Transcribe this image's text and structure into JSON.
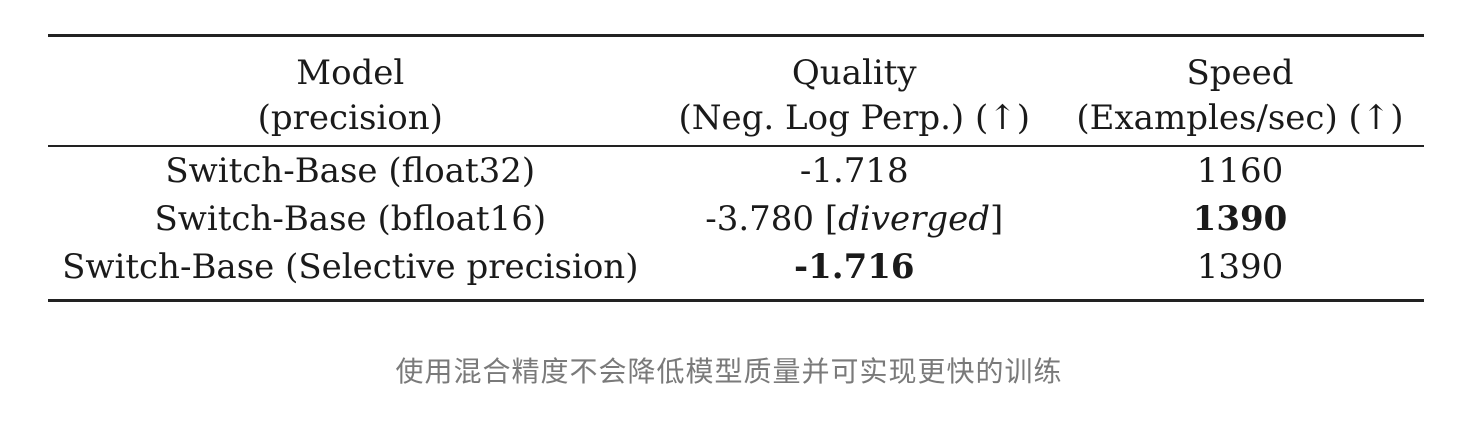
{
  "table": {
    "headers": [
      {
        "line1": "Model",
        "line2": "(precision)"
      },
      {
        "line1": "Quality",
        "line2": "(Neg. Log Perp.) (↑)"
      },
      {
        "line1": "Speed",
        "line2": "(Examples/sec) (↑)"
      }
    ],
    "rows": [
      {
        "model": "Switch-Base (float32)",
        "quality": "-1.718",
        "quality_note": "",
        "speed": "1160"
      },
      {
        "model": "Switch-Base (bfloat16)",
        "quality": "-3.780",
        "quality_note": "diverged",
        "speed": "1390"
      },
      {
        "model": "Switch-Base (Selective precision)",
        "quality": "-1.716",
        "quality_note": "",
        "speed": "1390"
      }
    ]
  },
  "caption": "使用混合精度不会降低模型质量并可实现更快的训练"
}
